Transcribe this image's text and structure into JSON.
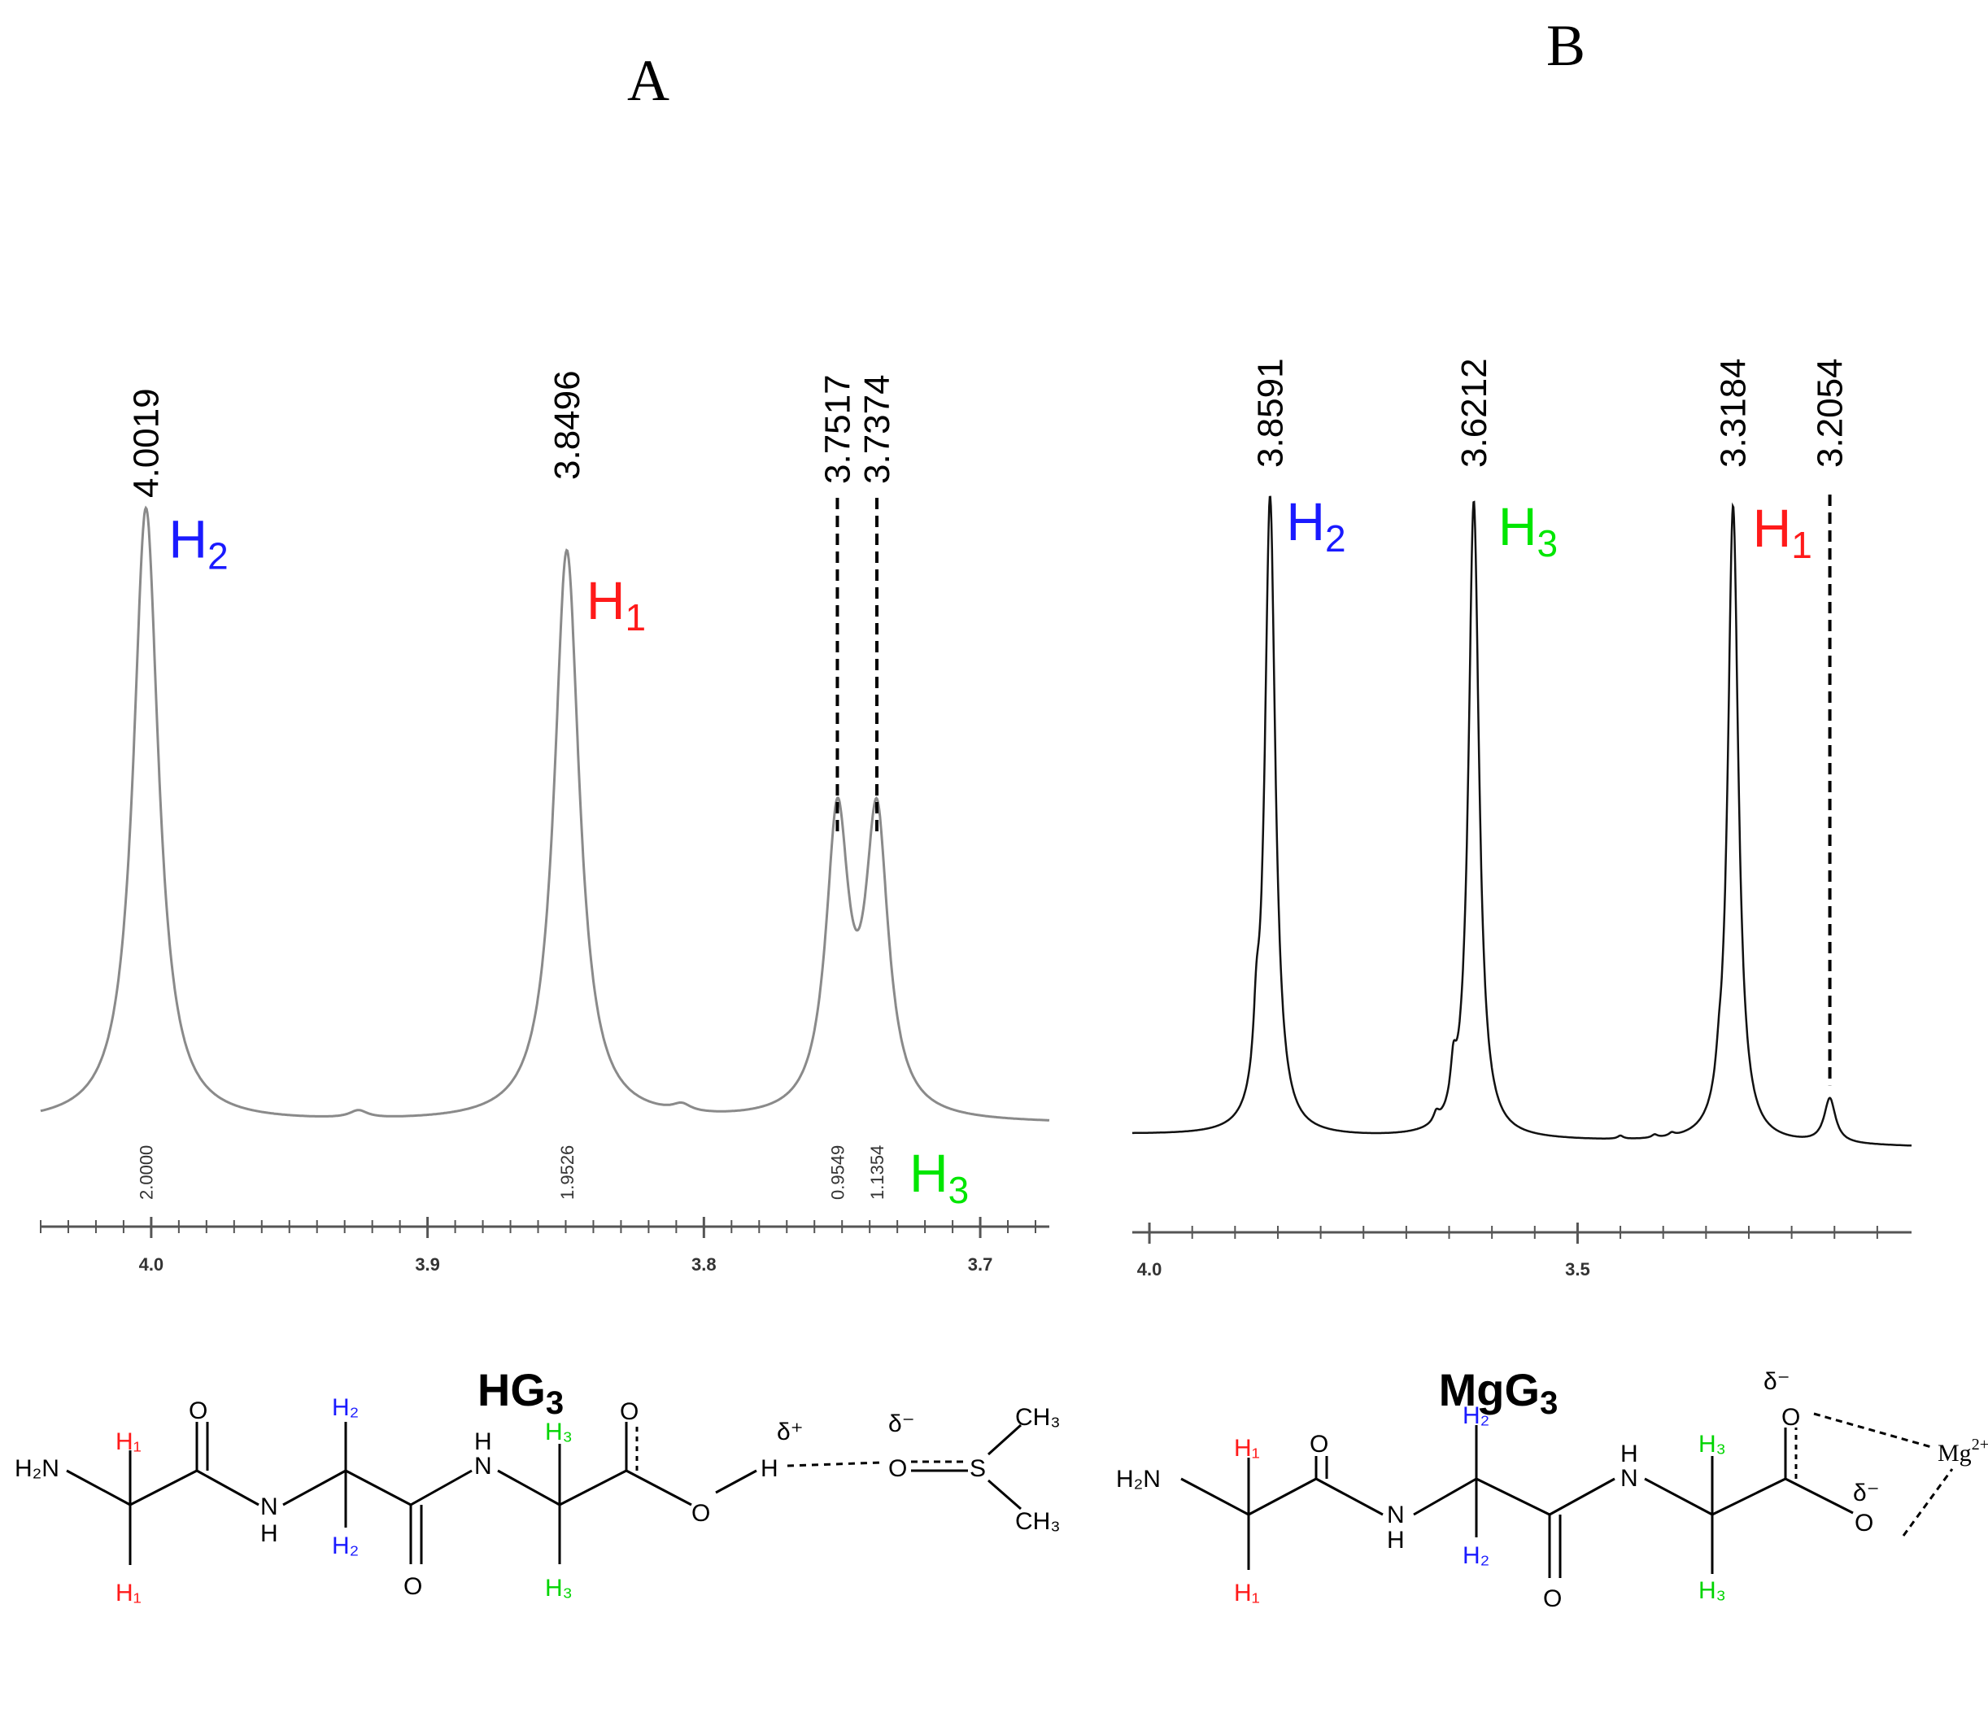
{
  "colors": {
    "H1": "#ff1a1a",
    "H2": "#1a1aff",
    "H3": "#00e600",
    "spectrumA": "#8a8a8a",
    "spectrumB": "#111111",
    "axis": "#555555"
  },
  "chart_data": [
    {
      "type": "line",
      "panel_label": "A",
      "xlim": [
        4.04,
        3.675
      ],
      "ylim": [
        0,
        1.0
      ],
      "x_ticks": [
        {
          "value": 4.0,
          "label": "4.0"
        },
        {
          "value": 3.9,
          "label": "3.9"
        },
        {
          "value": 3.8,
          "label": "3.8"
        },
        {
          "value": 3.7,
          "label": "3.7"
        }
      ],
      "peaks": [
        {
          "shift": 4.0019,
          "label": "4.0019",
          "height": 0.99,
          "width": 0.0055,
          "proton": "H2",
          "integral": "2.0000",
          "dashed": false
        },
        {
          "shift": 3.8496,
          "label": "3.8496",
          "height": 0.92,
          "width": 0.0055,
          "proton": "H1",
          "integral": "1.9526",
          "dashed": false
        },
        {
          "shift": 3.7517,
          "label": "3.7517",
          "height": 0.47,
          "width": 0.005,
          "proton": "H3",
          "integral": "0.9549",
          "dashed": true
        },
        {
          "shift": 3.7374,
          "label": "3.7374",
          "height": 0.47,
          "width": 0.005,
          "proton": "H3",
          "integral": "1.1354",
          "dashed": true
        }
      ],
      "minor_bumps": [
        {
          "shift": 3.925,
          "height": 0.012
        },
        {
          "shift": 3.808,
          "height": 0.012
        }
      ],
      "proton_labels": [
        {
          "proton": "H2",
          "sub": "2",
          "near_shift": 4.0019
        },
        {
          "proton": "H1",
          "sub": "1",
          "near_shift": 3.8496
        },
        {
          "proton": "H3",
          "sub": "3",
          "near_shift": 3.7374
        }
      ]
    },
    {
      "type": "line",
      "panel_label": "B",
      "xlim": [
        4.02,
        3.11
      ],
      "ylim": [
        0,
        1.0
      ],
      "x_ticks": [
        {
          "value": 4.0,
          "label": "4.0"
        },
        {
          "value": 3.5,
          "label": "3.5"
        }
      ],
      "peaks": [
        {
          "shift": 3.8591,
          "label": "3.8591",
          "height": 1.0,
          "width": 0.0075,
          "proton": "H2",
          "dashed": false
        },
        {
          "shift": 3.6212,
          "label": "3.6212",
          "height": 1.0,
          "width": 0.0075,
          "proton": "H3",
          "dashed": false
        },
        {
          "shift": 3.3184,
          "label": "3.3184",
          "height": 1.0,
          "width": 0.0075,
          "proton": "H1",
          "dashed": false
        },
        {
          "shift": 3.2054,
          "label": "3.2054",
          "height": 0.07,
          "width": 0.008,
          "proton": "",
          "dashed": true
        }
      ],
      "minor_bumps": [
        {
          "shift": 3.875,
          "height": 0.09
        },
        {
          "shift": 3.645,
          "height": 0.06
        },
        {
          "shift": 3.665,
          "height": 0.015
        },
        {
          "shift": 3.335,
          "height": 0.03
        },
        {
          "shift": 3.45,
          "height": 0.005
        },
        {
          "shift": 3.41,
          "height": 0.005
        },
        {
          "shift": 3.39,
          "height": 0.005
        }
      ],
      "proton_labels": [
        {
          "proton": "H2",
          "sub": "2",
          "near_shift": 3.8591
        },
        {
          "proton": "H3",
          "sub": "3",
          "near_shift": 3.6212
        },
        {
          "proton": "H1",
          "sub": "1",
          "near_shift": 3.3184
        }
      ]
    }
  ],
  "structures": {
    "HG3": {
      "title_main": "HG",
      "title_sub": "3",
      "H2N": "H₂N",
      "H1": "H₁",
      "H2": "H₂",
      "H3": "H₃",
      "O": "O",
      "N": "N",
      "H": "H",
      "S": "S",
      "CH3": "CH₃",
      "delta_plus": "δ⁺",
      "delta_minus": "δ⁻"
    },
    "MgG3": {
      "title_main": "MgG",
      "title_sub": "3",
      "H2N": "H₂N",
      "H1": "H₁",
      "H2": "H₂",
      "H3": "H₃",
      "O": "O",
      "N": "N",
      "H": "H",
      "Mg": "Mg",
      "Mg_charge": "2+",
      "delta_minus": "δ⁻"
    }
  }
}
